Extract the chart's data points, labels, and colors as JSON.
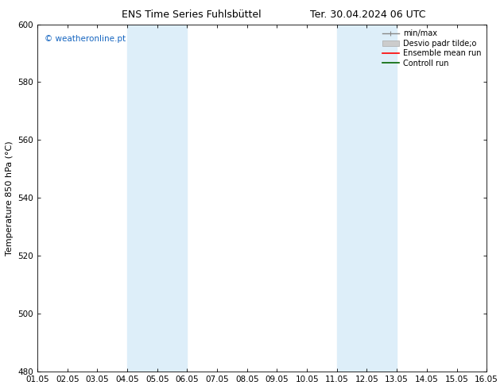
{
  "title_left": "ENS Time Series Fuhlsbüttel",
  "title_right": "Ter. 30.04.2024 06 UTC",
  "ylabel": "Temperature 850 hPa (°C)",
  "xlim": [
    0,
    15
  ],
  "ylim": [
    480,
    600
  ],
  "yticks": [
    480,
    500,
    520,
    540,
    560,
    580,
    600
  ],
  "xtick_labels": [
    "01.05",
    "02.05",
    "03.05",
    "04.05",
    "05.05",
    "06.05",
    "07.05",
    "08.05",
    "09.05",
    "10.05",
    "11.05",
    "12.05",
    "13.05",
    "14.05",
    "15.05",
    "16.05"
  ],
  "shaded_regions": [
    {
      "x_start": 3.0,
      "x_end": 5.0,
      "color": "#ddeef9"
    },
    {
      "x_start": 10.0,
      "x_end": 12.0,
      "color": "#ddeef9"
    }
  ],
  "watermark_text": "© weatheronline.pt",
  "watermark_color": "#1565c0",
  "background_color": "#ffffff",
  "plot_bg_color": "#ffffff",
  "title_fontsize": 9,
  "label_fontsize": 8,
  "tick_fontsize": 7.5,
  "watermark_fontsize": 7.5,
  "legend_fontsize": 7
}
